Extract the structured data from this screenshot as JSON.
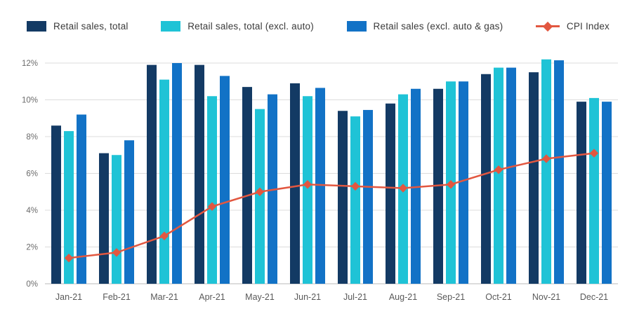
{
  "legend": [
    {
      "label": "Retail sales, total",
      "color": "#133a64",
      "kind": "bar"
    },
    {
      "label": "Retail sales, total (excl. auto)",
      "color": "#1fc3d6",
      "kind": "bar"
    },
    {
      "label": "Retail sales (excl. auto & gas)",
      "color": "#1272c6",
      "kind": "bar"
    },
    {
      "label": "CPI Index",
      "color": "#e25740",
      "kind": "line"
    }
  ],
  "axis": {
    "y_ticks": [
      "0%",
      "2%",
      "4%",
      "6%",
      "8%",
      "10%",
      "12%"
    ],
    "y_tick_values": [
      0,
      2,
      4,
      6,
      8,
      10,
      12
    ],
    "y_min": 0,
    "y_max": 12,
    "grid": true
  },
  "chart_data": {
    "type": "bar",
    "overlay": "line",
    "legend_position": "top",
    "title": "",
    "xlabel": "",
    "ylabel": "",
    "ylim": [
      0,
      12.6
    ],
    "categories": [
      "Jan-21",
      "Feb-21",
      "Mar-21",
      "Apr-21",
      "May-21",
      "Jun-21",
      "Jul-21",
      "Aug-21",
      "Sep-21",
      "Oct-21",
      "Nov-21",
      "Dec-21"
    ],
    "series": [
      {
        "name": "Retail sales, total",
        "series_type": "bar",
        "color": "#133a64",
        "values": [
          8.6,
          7.1,
          11.9,
          11.9,
          10.7,
          10.9,
          9.4,
          9.8,
          10.6,
          11.4,
          11.5,
          9.9
        ]
      },
      {
        "name": "Retail sales, total (excl. auto)",
        "series_type": "bar",
        "color": "#1fc3d6",
        "values": [
          8.3,
          7.0,
          11.1,
          10.2,
          9.5,
          10.2,
          9.1,
          10.3,
          11.0,
          11.75,
          12.2,
          10.1
        ]
      },
      {
        "name": "Retail sales (excl. auto & gas)",
        "series_type": "bar",
        "color": "#1272c6",
        "values": [
          9.2,
          7.8,
          12.0,
          11.3,
          10.3,
          10.65,
          9.45,
          10.6,
          11.0,
          11.75,
          12.15,
          9.9
        ]
      },
      {
        "name": "CPI Index",
        "series_type": "line",
        "color": "#e25740",
        "values": [
          1.4,
          1.7,
          2.6,
          4.2,
          5.0,
          5.4,
          5.3,
          5.2,
          5.4,
          6.2,
          6.8,
          7.1
        ]
      }
    ]
  }
}
